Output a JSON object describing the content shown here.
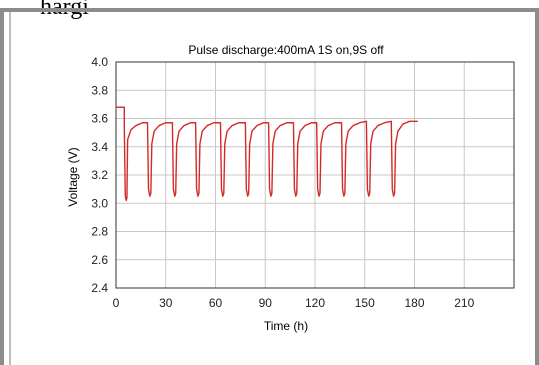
{
  "page": {
    "top_text": "hargi"
  },
  "chart_data": {
    "type": "line",
    "title": "Pulse discharge:400mA   1S on,9S off",
    "xlabel": "Time (h)",
    "ylabel": "Voltage (V)",
    "xlim": [
      0,
      240
    ],
    "ylim": [
      2.4,
      4.0
    ],
    "x_ticks": [
      0,
      30,
      60,
      90,
      120,
      150,
      180,
      210
    ],
    "y_ticks": [
      2.4,
      2.6,
      2.8,
      3.0,
      3.2,
      3.4,
      3.6,
      3.8,
      4.0
    ],
    "x_tick_labels": [
      "0",
      "30",
      "60",
      "90",
      "120",
      "150",
      "180",
      "210"
    ],
    "y_tick_labels": [
      "2.4",
      "2.6",
      "2.8",
      "3.0",
      "3.2",
      "3.4",
      "3.6",
      "3.8",
      "4.0"
    ],
    "grid": true,
    "series_color": "#d42a2a",
    "series": [
      {
        "values": [
          [
            0,
            3.68
          ],
          [
            5,
            3.68
          ],
          [
            5,
            3.54
          ],
          [
            5.6,
            3.05
          ],
          [
            6.2,
            3.02
          ],
          [
            6.6,
            3.04
          ],
          [
            7,
            3.45
          ],
          [
            9,
            3.52
          ],
          [
            12,
            3.55
          ],
          [
            16,
            3.57
          ],
          [
            19,
            3.57
          ],
          [
            19.6,
            3.1
          ],
          [
            20.4,
            3.05
          ],
          [
            21,
            3.07
          ],
          [
            21.6,
            3.42
          ],
          [
            23,
            3.51
          ],
          [
            26,
            3.55
          ],
          [
            30,
            3.57
          ],
          [
            34,
            3.57
          ],
          [
            34.6,
            3.1
          ],
          [
            35.4,
            3.05
          ],
          [
            36,
            3.07
          ],
          [
            36.6,
            3.42
          ],
          [
            38,
            3.51
          ],
          [
            41,
            3.55
          ],
          [
            45,
            3.57
          ],
          [
            48,
            3.57
          ],
          [
            48.6,
            3.1
          ],
          [
            49.4,
            3.05
          ],
          [
            50,
            3.07
          ],
          [
            50.6,
            3.42
          ],
          [
            52,
            3.51
          ],
          [
            55,
            3.55
          ],
          [
            59,
            3.57
          ],
          [
            63,
            3.57
          ],
          [
            63.6,
            3.1
          ],
          [
            64.4,
            3.05
          ],
          [
            65,
            3.07
          ],
          [
            65.6,
            3.42
          ],
          [
            67,
            3.51
          ],
          [
            70,
            3.55
          ],
          [
            74,
            3.57
          ],
          [
            78,
            3.57
          ],
          [
            78.6,
            3.1
          ],
          [
            79.4,
            3.05
          ],
          [
            80,
            3.07
          ],
          [
            80.6,
            3.42
          ],
          [
            82,
            3.51
          ],
          [
            85,
            3.55
          ],
          [
            89,
            3.57
          ],
          [
            92,
            3.57
          ],
          [
            92.6,
            3.1
          ],
          [
            93.4,
            3.05
          ],
          [
            94,
            3.07
          ],
          [
            94.6,
            3.42
          ],
          [
            96,
            3.51
          ],
          [
            99,
            3.55
          ],
          [
            103,
            3.57
          ],
          [
            107,
            3.57
          ],
          [
            107.6,
            3.1
          ],
          [
            108.4,
            3.05
          ],
          [
            109,
            3.07
          ],
          [
            109.6,
            3.42
          ],
          [
            111,
            3.51
          ],
          [
            114,
            3.55
          ],
          [
            118,
            3.57
          ],
          [
            121,
            3.57
          ],
          [
            121.6,
            3.1
          ],
          [
            122.4,
            3.05
          ],
          [
            123,
            3.07
          ],
          [
            123.6,
            3.42
          ],
          [
            125,
            3.51
          ],
          [
            128,
            3.55
          ],
          [
            132,
            3.57
          ],
          [
            136,
            3.57
          ],
          [
            136.6,
            3.1
          ],
          [
            137.4,
            3.05
          ],
          [
            138,
            3.07
          ],
          [
            138.6,
            3.42
          ],
          [
            140,
            3.51
          ],
          [
            143,
            3.55
          ],
          [
            147,
            3.57
          ],
          [
            151,
            3.58
          ],
          [
            151.6,
            3.1
          ],
          [
            152.4,
            3.05
          ],
          [
            153,
            3.07
          ],
          [
            153.6,
            3.42
          ],
          [
            155,
            3.51
          ],
          [
            158,
            3.55
          ],
          [
            162,
            3.57
          ],
          [
            166,
            3.58
          ],
          [
            166.6,
            3.1
          ],
          [
            167.4,
            3.05
          ],
          [
            168,
            3.07
          ],
          [
            168.6,
            3.42
          ],
          [
            170,
            3.51
          ],
          [
            173,
            3.56
          ],
          [
            177,
            3.58
          ],
          [
            182,
            3.58
          ]
        ]
      }
    ]
  }
}
